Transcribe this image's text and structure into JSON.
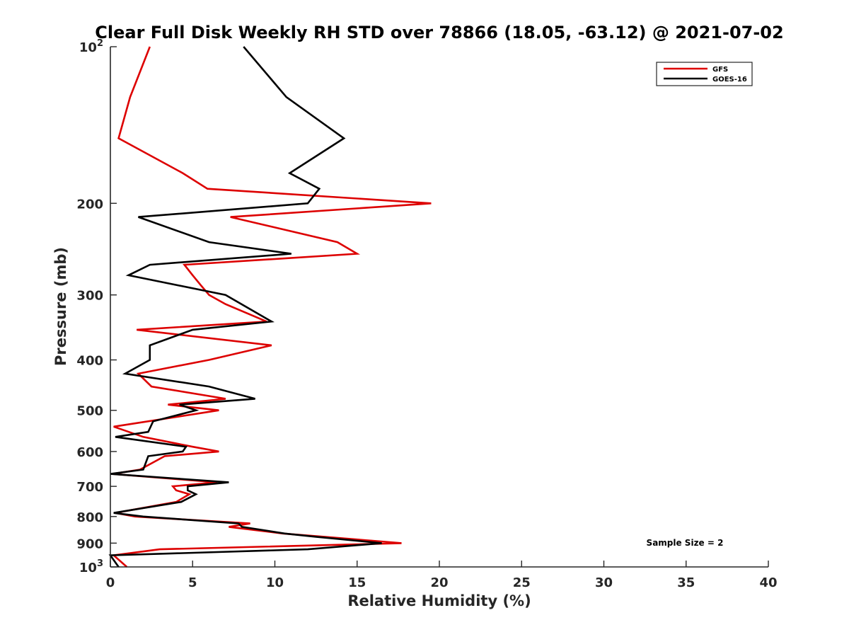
{
  "chart_data": {
    "type": "line",
    "title": "Clear Full Disk Weekly RH STD over 78866 (18.05, -63.12) @ 2021-07-02",
    "xlabel": "Relative Humidity (%)",
    "ylabel": "Pressure (mb)",
    "xlim": [
      0,
      40
    ],
    "ylim": [
      100,
      1000
    ],
    "y_scale": "log",
    "y_reversed": true,
    "grid": false,
    "legend_position": "top-right",
    "x_ticks": [
      "0",
      "5",
      "10",
      "15",
      "20",
      "25",
      "30",
      "35",
      "40"
    ],
    "y_ticks": [
      {
        "value": 100,
        "base": "10",
        "exp": "2"
      },
      {
        "value": 200,
        "label": "200"
      },
      {
        "value": 300,
        "label": "300"
      },
      {
        "value": 400,
        "label": "400"
      },
      {
        "value": 500,
        "label": "500"
      },
      {
        "value": 600,
        "label": "600"
      },
      {
        "value": 700,
        "label": "700"
      },
      {
        "value": 800,
        "label": "800"
      },
      {
        "value": 900,
        "label": "900"
      },
      {
        "value": 1000,
        "base": "10",
        "exp": "3"
      }
    ],
    "annotation": "Sample Size = 2",
    "series": [
      {
        "name": "GFS",
        "color": "#dd0000",
        "points": [
          [
            2.4,
            100
          ],
          [
            1.2,
            125
          ],
          [
            0.5,
            150
          ],
          [
            4.4,
            175
          ],
          [
            5.9,
            187.5
          ],
          [
            19.5,
            200
          ],
          [
            7.3,
            212.5
          ],
          [
            13.8,
            237.5
          ],
          [
            15.0,
            250
          ],
          [
            4.5,
            262.5
          ],
          [
            5.0,
            275
          ],
          [
            5.5,
            287.5
          ],
          [
            6.0,
            300
          ],
          [
            7.0,
            312.5
          ],
          [
            9.5,
            337.5
          ],
          [
            1.6,
            350
          ],
          [
            9.8,
            375
          ],
          [
            6.0,
            400
          ],
          [
            1.7,
            425
          ],
          [
            2.5,
            450
          ],
          [
            7.0,
            475
          ],
          [
            3.5,
            487.5
          ],
          [
            6.6,
            500
          ],
          [
            0.2,
            537.5
          ],
          [
            2.0,
            562.5
          ],
          [
            5.0,
            587.5
          ],
          [
            6.6,
            600
          ],
          [
            3.3,
            612.5
          ],
          [
            1.8,
            650
          ],
          [
            0.1,
            662.5
          ],
          [
            6.5,
            687.5
          ],
          [
            3.8,
            700
          ],
          [
            4.0,
            712.5
          ],
          [
            4.8,
            725
          ],
          [
            4.0,
            750
          ],
          [
            0.3,
            787.5
          ],
          [
            1.5,
            800
          ],
          [
            8.5,
            825
          ],
          [
            7.2,
            837.5
          ],
          [
            10.5,
            862.5
          ],
          [
            13.0,
            875
          ],
          [
            17.7,
            900
          ],
          [
            3.0,
            925
          ],
          [
            0.2,
            950
          ],
          [
            1.0,
            1000
          ]
        ]
      },
      {
        "name": "GOES-16",
        "color": "#000000",
        "points": [
          [
            8.1,
            100
          ],
          [
            10.7,
            125
          ],
          [
            14.2,
            150
          ],
          [
            10.9,
            175
          ],
          [
            12.7,
            187.5
          ],
          [
            12.0,
            200
          ],
          [
            1.7,
            212.5
          ],
          [
            6.0,
            237.5
          ],
          [
            11.0,
            250
          ],
          [
            2.4,
            262.5
          ],
          [
            1.1,
            275
          ],
          [
            7.0,
            300
          ],
          [
            9.8,
            337.5
          ],
          [
            5.0,
            350
          ],
          [
            2.4,
            375
          ],
          [
            2.4,
            400
          ],
          [
            0.9,
            425
          ],
          [
            6.0,
            450
          ],
          [
            8.8,
            475
          ],
          [
            4.2,
            487.5
          ],
          [
            5.2,
            500
          ],
          [
            2.6,
            525
          ],
          [
            2.3,
            550
          ],
          [
            0.3,
            562.5
          ],
          [
            4.6,
            587.5
          ],
          [
            4.4,
            600
          ],
          [
            2.3,
            612.5
          ],
          [
            2.0,
            650
          ],
          [
            0.0,
            662.5
          ],
          [
            7.2,
            687.5
          ],
          [
            4.7,
            700
          ],
          [
            4.7,
            712.5
          ],
          [
            5.2,
            725
          ],
          [
            4.3,
            750
          ],
          [
            0.2,
            787.5
          ],
          [
            2.0,
            800
          ],
          [
            7.8,
            825
          ],
          [
            8.0,
            837.5
          ],
          [
            10.6,
            862.5
          ],
          [
            12.5,
            875
          ],
          [
            16.5,
            900
          ],
          [
            12.0,
            925
          ],
          [
            0.0,
            950
          ],
          [
            0.5,
            1000
          ]
        ]
      }
    ]
  }
}
